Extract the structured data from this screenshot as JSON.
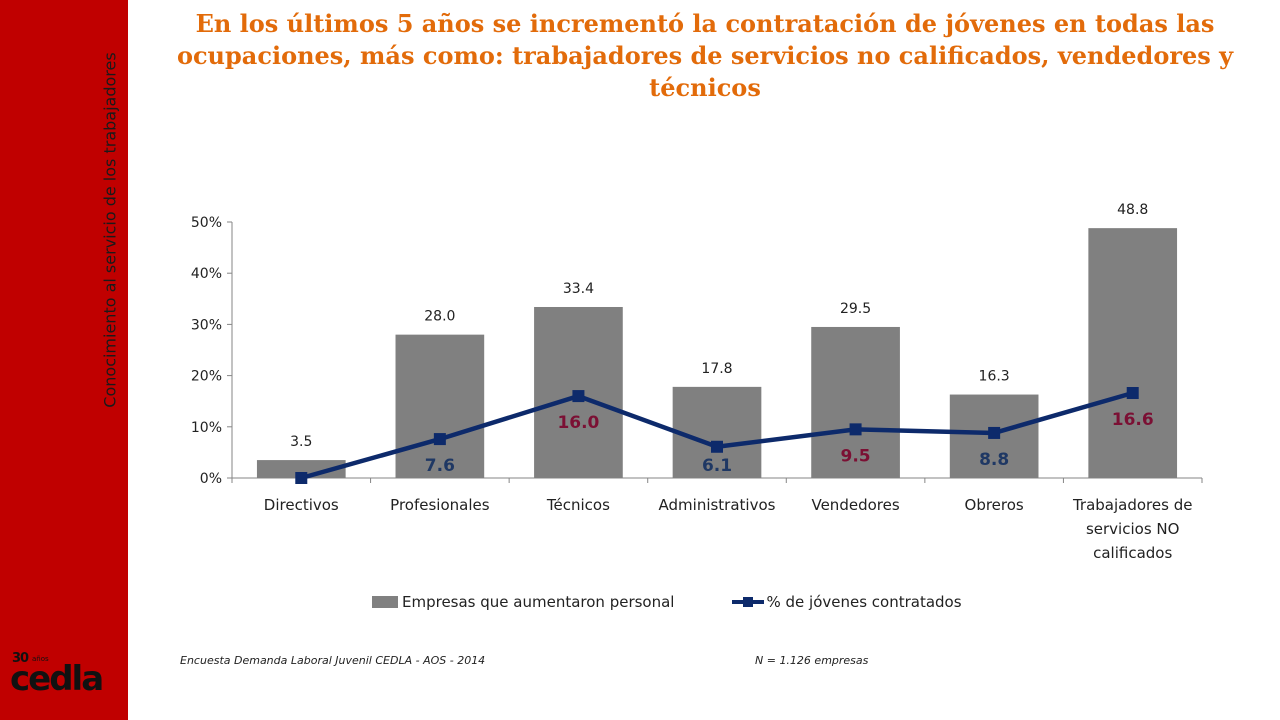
{
  "sidebar": {
    "vertical_text": "Conocimiento al servicio de los trabajadores",
    "logo_text": "30 años cedla"
  },
  "title": "En los últimos 5 años se incrementó la contratación de jóvenes en todas las ocupaciones, más como:  trabajadores de servicios no calificados, vendedores y técnicos",
  "chart_data": {
    "type": "bar",
    "categories": [
      "Directivos",
      "Profesionales",
      "Técnicos",
      "Administrativos",
      "Vendedores",
      "Obreros",
      "Trabajadores de servicios NO calificados"
    ],
    "series": [
      {
        "name": "Empresas que aumentaron personal",
        "type": "bar",
        "values": [
          3.5,
          28.0,
          33.4,
          17.8,
          29.5,
          16.3,
          48.8
        ],
        "labels": [
          "3.5",
          "28.0",
          "33.4",
          "17.8",
          "29.5",
          "16.3",
          "48.8"
        ],
        "color": "#808080"
      },
      {
        "name": "% de jóvenes contratados",
        "type": "line",
        "values": [
          0.0,
          7.6,
          16.0,
          6.1,
          9.5,
          8.8,
          16.6
        ],
        "labels": [
          "",
          "7.6",
          "16.0",
          "6.1",
          "9.5",
          "8.8",
          "16.6"
        ],
        "label_colors": [
          "#1f3864",
          "#1f3864",
          "#7b1034",
          "#1f3864",
          "#7b1034",
          "#1f3864",
          "#7b1034"
        ],
        "color": "#0d2a6b"
      }
    ],
    "y_ticks": [
      "0%",
      "10%",
      "20%",
      "30%",
      "40%",
      "50%"
    ],
    "ylim": [
      0,
      50
    ],
    "grid": false,
    "legend_position": "bottom"
  },
  "footer": {
    "source": "Encuesta Demanda Laboral Juvenil CEDLA - AOS - 2014",
    "sample": "N = 1.126 empresas"
  }
}
